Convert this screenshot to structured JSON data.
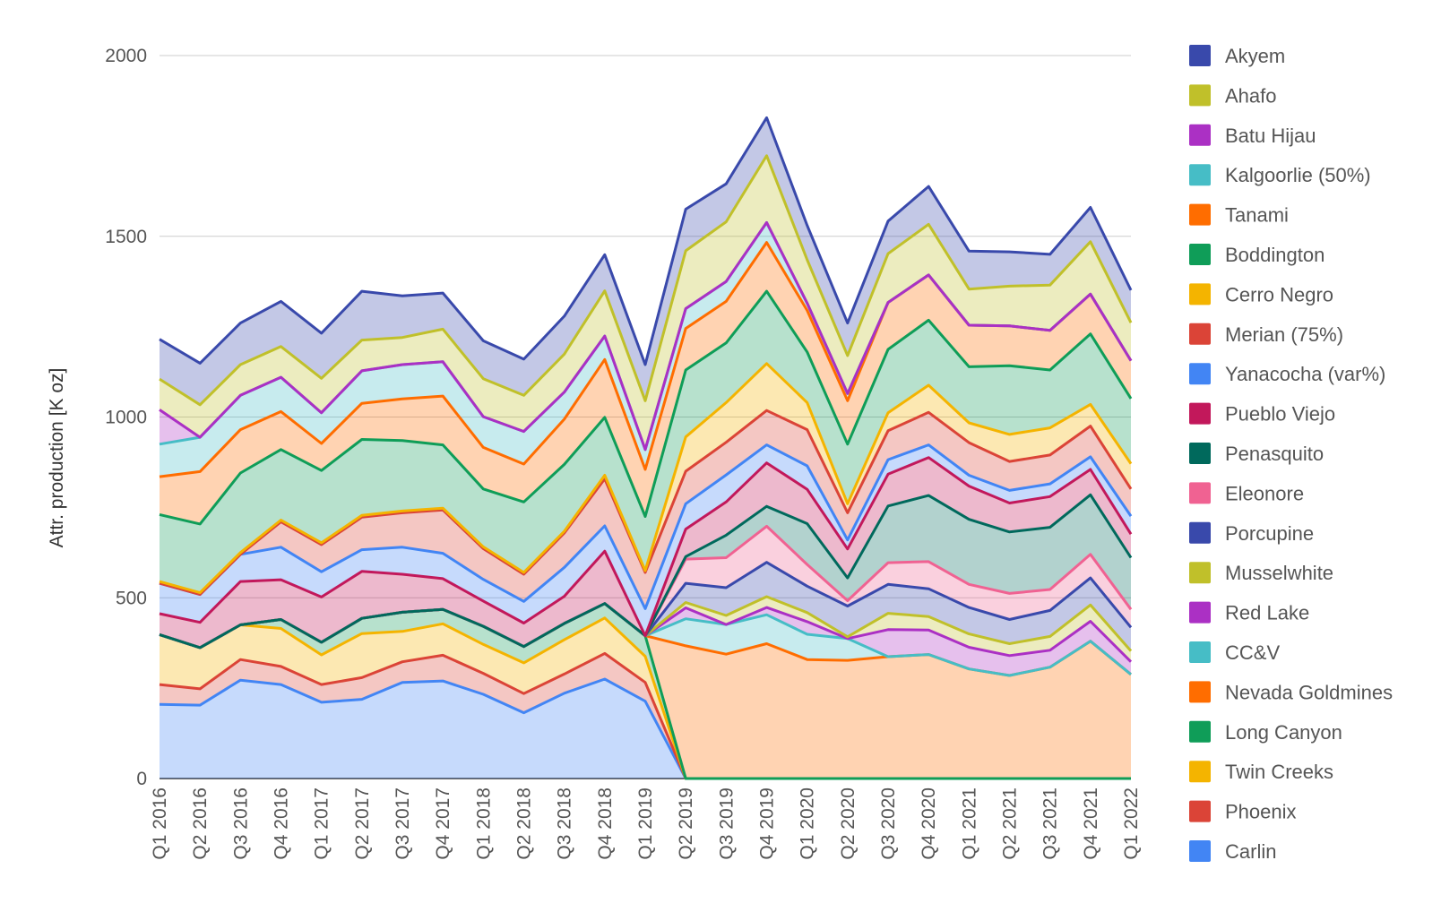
{
  "chart_data": {
    "type": "area",
    "stacked": true,
    "title": "",
    "xlabel": "",
    "ylabel": "Attr. production [K oz]",
    "ylim": [
      0,
      2000
    ],
    "yticks": [
      0,
      500,
      1000,
      1500,
      2000
    ],
    "grid": true,
    "legend_position": "right",
    "categories": [
      "Q1 2016",
      "Q2 2016",
      "Q3 2016",
      "Q4 2016",
      "Q1 2017",
      "Q2 2017",
      "Q3 2017",
      "Q4 2017",
      "Q1 2018",
      "Q2 2018",
      "Q3 2018",
      "Q4 2018",
      "Q1 2019",
      "Q2 2019",
      "Q3 2019",
      "Q4 2019",
      "Q1 2020",
      "Q2 2020",
      "Q3 2020",
      "Q4 2020",
      "Q1 2021",
      "Q2 2021",
      "Q3 2021",
      "Q4 2021",
      "Q1 2022"
    ],
    "series": [
      {
        "name": "Carlin",
        "color": "#4285f4",
        "values": [
          205,
          203,
          272,
          260,
          211,
          219,
          266,
          270,
          233,
          182,
          236,
          275,
          214,
          0,
          0,
          0,
          0,
          0,
          0,
          0,
          0,
          0,
          0,
          0,
          0
        ]
      },
      {
        "name": "Phoenix",
        "color": "#db4437",
        "values": [
          55,
          45,
          57,
          50,
          49,
          60,
          57,
          71,
          58,
          53,
          53,
          71,
          52,
          0,
          0,
          0,
          0,
          0,
          0,
          0,
          0,
          0,
          0,
          0,
          0
        ]
      },
      {
        "name": "Twin Creeks",
        "color": "#f4b400",
        "values": [
          138,
          114,
          96,
          105,
          82,
          122,
          84,
          87,
          80,
          85,
          95,
          98,
          72,
          0,
          0,
          0,
          0,
          0,
          0,
          0,
          0,
          0,
          0,
          0,
          0
        ]
      },
      {
        "name": "Long Canyon",
        "color": "#0f9d58",
        "values": [
          0,
          0,
          0,
          25,
          35,
          42,
          53,
          40,
          50,
          45,
          45,
          40,
          57,
          0,
          0,
          0,
          0,
          0,
          0,
          0,
          0,
          0,
          0,
          0,
          0
        ]
      },
      {
        "name": "Nevada Goldmines",
        "color": "#ff6d00",
        "values": [
          0,
          0,
          0,
          0,
          0,
          0,
          0,
          0,
          0,
          0,
          0,
          0,
          0,
          367,
          344,
          373,
          329,
          327,
          337,
          343,
          303,
          285,
          308,
          380,
          288
        ]
      },
      {
        "name": "CC&V",
        "color": "#46bdc6",
        "values": [
          0,
          0,
          0,
          0,
          0,
          0,
          0,
          0,
          0,
          0,
          0,
          0,
          0,
          75,
          82,
          80,
          70,
          60,
          0,
          0,
          0,
          0,
          0,
          0,
          0
        ]
      },
      {
        "name": "Red Lake",
        "color": "#ab30c4",
        "values": [
          0,
          0,
          0,
          0,
          0,
          0,
          0,
          0,
          0,
          0,
          0,
          0,
          0,
          30,
          0,
          20,
          35,
          0,
          75,
          68,
          60,
          55,
          47,
          55,
          35
        ]
      },
      {
        "name": "Musselwhite",
        "color": "#c0c02a",
        "values": [
          0,
          0,
          0,
          0,
          0,
          0,
          0,
          0,
          0,
          0,
          0,
          0,
          0,
          15,
          25,
          30,
          25,
          5,
          45,
          37,
          37,
          33,
          38,
          45,
          30
        ]
      },
      {
        "name": "Porcupine",
        "color": "#3949ab",
        "values": [
          0,
          0,
          0,
          0,
          0,
          0,
          0,
          0,
          0,
          0,
          0,
          0,
          0,
          53,
          77,
          95,
          73,
          85,
          80,
          77,
          73,
          67,
          72,
          75,
          65
        ]
      },
      {
        "name": "Eleonore",
        "color": "#f06292",
        "values": [
          0,
          0,
          0,
          0,
          0,
          0,
          0,
          0,
          0,
          0,
          0,
          0,
          0,
          67,
          83,
          100,
          60,
          15,
          60,
          75,
          64,
          72,
          58,
          65,
          50
        ]
      },
      {
        "name": "Penasquito",
        "color": "#00695c",
        "values": [
          0,
          0,
          0,
          0,
          0,
          0,
          0,
          0,
          0,
          0,
          0,
          0,
          0,
          7,
          62,
          55,
          113,
          63,
          157,
          183,
          180,
          170,
          172,
          165,
          143
        ]
      },
      {
        "name": "Pueblo Viejo",
        "color": "#c2185b",
        "values": [
          58,
          70,
          120,
          110,
          125,
          130,
          105,
          85,
          70,
          65,
          75,
          145,
          0,
          76,
          92,
          120,
          95,
          80,
          88,
          105,
          92,
          80,
          85,
          70,
          65
        ]
      },
      {
        "name": "Yanacocha (var%)",
        "color": "#4285f4",
        "values": [
          84,
          77,
          75,
          90,
          70,
          60,
          75,
          70,
          60,
          60,
          80,
          70,
          75,
          70,
          75,
          50,
          65,
          25,
          40,
          35,
          30,
          35,
          35,
          35,
          50
        ]
      },
      {
        "name": "Merian (75%)",
        "color": "#db4437",
        "values": [
          0,
          0,
          0,
          70,
          75,
          90,
          95,
          120,
          85,
          75,
          95,
          130,
          100,
          90,
          90,
          95,
          100,
          75,
          80,
          90,
          90,
          80,
          80,
          85,
          75
        ]
      },
      {
        "name": "Cerro Negro",
        "color": "#f4b400",
        "values": [
          5,
          5,
          5,
          5,
          5,
          5,
          5,
          5,
          5,
          5,
          5,
          10,
          5,
          95,
          110,
          130,
          75,
          25,
          50,
          75,
          55,
          75,
          75,
          60,
          70
        ]
      },
      {
        "name": "Boddington",
        "color": "#0f9d58",
        "values": [
          185,
          190,
          220,
          195,
          200,
          210,
          195,
          175,
          160,
          195,
          185,
          160,
          150,
          185,
          165,
          200,
          140,
          165,
          175,
          180,
          155,
          190,
          160,
          195,
          180
        ]
      },
      {
        "name": "Tanami",
        "color": "#ff6d00",
        "values": [
          105,
          145,
          120,
          105,
          75,
          100,
          115,
          135,
          115,
          105,
          125,
          160,
          130,
          115,
          115,
          135,
          115,
          120,
          130,
          125,
          115,
          110,
          110,
          110,
          105
        ]
      },
      {
        "name": "Kalgoorlie (50%)",
        "color": "#46bdc6",
        "values": [
          90,
          95,
          95,
          95,
          85,
          90,
          95,
          95,
          85,
          90,
          75,
          65,
          55,
          55,
          55,
          55,
          20,
          20,
          0,
          0,
          0,
          0,
          0,
          0,
          0
        ]
      },
      {
        "name": "Batu Hijau",
        "color": "#ab30c4",
        "values": [
          95,
          0,
          0,
          0,
          0,
          0,
          0,
          0,
          0,
          0,
          0,
          0,
          0,
          0,
          0,
          0,
          0,
          0,
          0,
          0,
          0,
          0,
          0,
          0,
          0
        ]
      },
      {
        "name": "Ahafo",
        "color": "#c0c02a",
        "values": [
          85,
          90,
          85,
          85,
          95,
          85,
          75,
          90,
          105,
          100,
          105,
          125,
          135,
          160,
          165,
          185,
          120,
          105,
          135,
          140,
          100,
          110,
          125,
          145,
          105
        ]
      },
      {
        "name": "Akyem",
        "color": "#3949ab",
        "values": [
          110,
          115,
          115,
          125,
          125,
          135,
          115,
          100,
          105,
          100,
          105,
          100,
          100,
          115,
          105,
          105,
          95,
          90,
          90,
          105,
          105,
          95,
          85,
          95,
          90
        ]
      }
    ]
  }
}
